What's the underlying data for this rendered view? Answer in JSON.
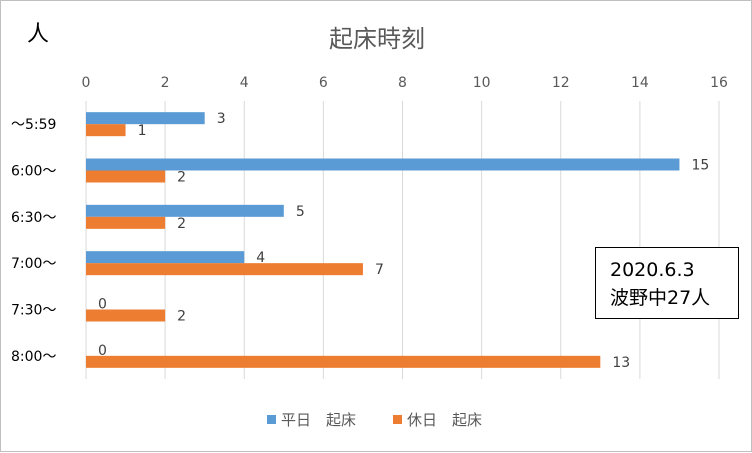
{
  "chart_data": {
    "type": "bar",
    "orientation": "horizontal",
    "title": "起床時刻",
    "unit_label": "人",
    "xlim": [
      0,
      16
    ],
    "xticks": [
      "0",
      "2",
      "4",
      "6",
      "8",
      "10",
      "12",
      "14",
      "16"
    ],
    "categories": [
      "～5:59",
      "6:00～",
      "6:30～",
      "7:00～",
      "7:30～",
      "8:00～"
    ],
    "series": [
      {
        "name": "平日　起床",
        "color": "#5b9bd5",
        "values": [
          3,
          15,
          5,
          4,
          0,
          0
        ]
      },
      {
        "name": "休日　起床",
        "color": "#ed7d31",
        "values": [
          1,
          2,
          2,
          7,
          2,
          13
        ]
      }
    ],
    "grid": true,
    "legend_position": "bottom"
  },
  "note": {
    "line1": "2020.6.3",
    "line2": "波野中27人"
  }
}
